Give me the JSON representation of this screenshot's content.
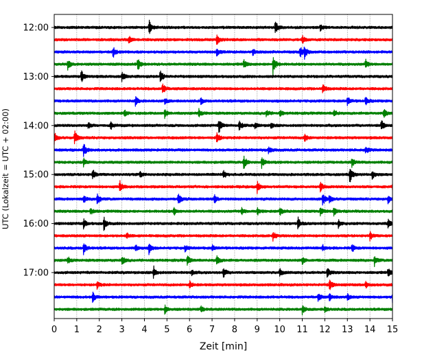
{
  "chart_data": {
    "type": "line",
    "title": "",
    "xlabel": "Zeit  [min]",
    "ylabel": "UTC (Lokalzeit = UTC + 02:00)",
    "xlim": [
      0,
      15
    ],
    "x_ticks": [
      "0",
      "1",
      "2",
      "3",
      "4",
      "5",
      "6",
      "7",
      "8",
      "9",
      "10",
      "11",
      "12",
      "13",
      "14",
      "15"
    ],
    "y_ticks": [
      "12:00",
      "13:00",
      "14:00",
      "15:00",
      "16:00",
      "17:00"
    ],
    "y_tick_rows": [
      0,
      4,
      8,
      12,
      16,
      20
    ],
    "grid": "vertical dotted at each minute",
    "row_interval_min": 15,
    "trace_colors": [
      "#000000",
      "#ff0000",
      "#0000ff",
      "#008000"
    ],
    "series": [
      {
        "start": "12:00",
        "events": [
          [
            4.2,
            1.0
          ],
          [
            9.8,
            1.0
          ],
          [
            11.8,
            0.4
          ]
        ]
      },
      {
        "start": "12:15",
        "events": [
          [
            3.3,
            0.5
          ],
          [
            7.2,
            0.8
          ],
          [
            11.0,
            0.5
          ]
        ]
      },
      {
        "start": "12:30",
        "events": [
          [
            2.6,
            0.8
          ],
          [
            7.2,
            0.6
          ],
          [
            8.8,
            0.4
          ],
          [
            10.9,
            0.9
          ],
          [
            11.1,
            0.9
          ]
        ]
      },
      {
        "start": "12:45",
        "events": [
          [
            0.6,
            0.7
          ],
          [
            3.7,
            0.9
          ],
          [
            8.4,
            0.6
          ],
          [
            9.7,
            1.4
          ],
          [
            13.8,
            0.6
          ]
        ]
      },
      {
        "start": "13:00",
        "events": [
          [
            1.2,
            0.9
          ],
          [
            3.0,
            0.6
          ],
          [
            4.7,
            0.9
          ]
        ]
      },
      {
        "start": "13:15",
        "events": [
          [
            4.8,
            0.8
          ],
          [
            11.9,
            0.7
          ]
        ]
      },
      {
        "start": "13:30",
        "events": [
          [
            3.6,
            0.6
          ],
          [
            4.9,
            0.4
          ],
          [
            6.5,
            0.4
          ],
          [
            13.0,
            0.6
          ],
          [
            13.8,
            0.6
          ]
        ]
      },
      {
        "start": "13:45",
        "events": [
          [
            3.1,
            0.4
          ],
          [
            4.9,
            0.6
          ],
          [
            6.4,
            0.6
          ],
          [
            9.4,
            0.5
          ],
          [
            10.0,
            0.4
          ],
          [
            12.4,
            0.5
          ],
          [
            14.6,
            0.6
          ]
        ]
      },
      {
        "start": "14:00",
        "events": [
          [
            1.5,
            0.4
          ],
          [
            2.5,
            0.5
          ],
          [
            7.3,
            1.0
          ],
          [
            8.2,
            0.7
          ],
          [
            8.9,
            0.4
          ],
          [
            9.6,
            0.4
          ],
          [
            14.5,
            0.7
          ]
        ]
      },
      {
        "start": "14:15",
        "events": [
          [
            0.0,
            0.8
          ],
          [
            0.9,
            1.0
          ],
          [
            7.2,
            0.9
          ],
          [
            11.1,
            0.6
          ]
        ]
      },
      {
        "start": "14:30",
        "events": [
          [
            1.3,
            1.0
          ],
          [
            9.5,
            0.6
          ],
          [
            13.8,
            0.6
          ]
        ]
      },
      {
        "start": "14:45",
        "events": [
          [
            1.3,
            0.5
          ],
          [
            8.4,
            0.9
          ],
          [
            9.2,
            0.7
          ],
          [
            13.2,
            0.6
          ]
        ]
      },
      {
        "start": "15:00",
        "events": [
          [
            1.7,
            0.7
          ],
          [
            3.8,
            0.4
          ],
          [
            7.5,
            0.6
          ],
          [
            13.1,
            1.2
          ],
          [
            14.1,
            0.6
          ]
        ]
      },
      {
        "start": "15:15",
        "events": [
          [
            2.9,
            0.8
          ],
          [
            9.0,
            0.8
          ],
          [
            11.8,
            0.6
          ],
          [
            15.0,
            0.6
          ]
        ]
      },
      {
        "start": "15:30",
        "events": [
          [
            1.3,
            0.5
          ],
          [
            1.9,
            0.9
          ],
          [
            5.5,
            0.8
          ],
          [
            7.1,
            0.6
          ],
          [
            11.9,
            1.0
          ],
          [
            12.2,
            0.6
          ],
          [
            14.8,
            0.6
          ]
        ]
      },
      {
        "start": "15:45",
        "events": [
          [
            1.6,
            0.5
          ],
          [
            5.3,
            0.5
          ],
          [
            8.3,
            0.5
          ],
          [
            9.0,
            0.5
          ],
          [
            10.0,
            0.6
          ],
          [
            11.8,
            0.6
          ],
          [
            12.4,
            0.5
          ]
        ]
      },
      {
        "start": "16:00",
        "events": [
          [
            1.3,
            0.6
          ],
          [
            2.2,
            0.9
          ],
          [
            10.8,
            0.9
          ],
          [
            12.6,
            0.5
          ],
          [
            14.8,
            0.6
          ]
        ]
      },
      {
        "start": "16:15",
        "events": [
          [
            3.2,
            0.4
          ],
          [
            9.7,
            0.6
          ],
          [
            14.0,
            0.6
          ]
        ]
      },
      {
        "start": "16:30",
        "events": [
          [
            1.3,
            0.9
          ],
          [
            3.6,
            0.5
          ],
          [
            4.2,
            0.8
          ],
          [
            5.8,
            0.4
          ],
          [
            7.0,
            0.4
          ],
          [
            11.9,
            0.4
          ],
          [
            13.2,
            0.5
          ]
        ]
      },
      {
        "start": "16:45",
        "events": [
          [
            0.6,
            0.5
          ],
          [
            3.0,
            0.7
          ],
          [
            5.9,
            0.6
          ],
          [
            7.2,
            0.7
          ],
          [
            11.0,
            0.5
          ],
          [
            14.2,
            0.7
          ]
        ]
      },
      {
        "start": "17:00",
        "events": [
          [
            4.4,
            0.9
          ],
          [
            6.1,
            0.4
          ],
          [
            7.5,
            0.7
          ],
          [
            10.0,
            0.6
          ],
          [
            12.1,
            0.7
          ],
          [
            14.8,
            0.6
          ]
        ]
      },
      {
        "start": "17:15",
        "events": [
          [
            1.9,
            0.5
          ],
          [
            6.0,
            0.5
          ],
          [
            12.2,
            0.8
          ],
          [
            13.8,
            0.4
          ]
        ]
      },
      {
        "start": "17:30",
        "events": [
          [
            1.7,
            0.7
          ],
          [
            11.7,
            0.5
          ],
          [
            12.2,
            0.5
          ],
          [
            13.0,
            0.4
          ],
          [
            15.0,
            0.7
          ]
        ]
      },
      {
        "start": "17:45",
        "events": [
          [
            4.9,
            0.6
          ],
          [
            6.5,
            0.4
          ],
          [
            11.0,
            0.6
          ],
          [
            12.0,
            0.4
          ]
        ]
      }
    ]
  }
}
